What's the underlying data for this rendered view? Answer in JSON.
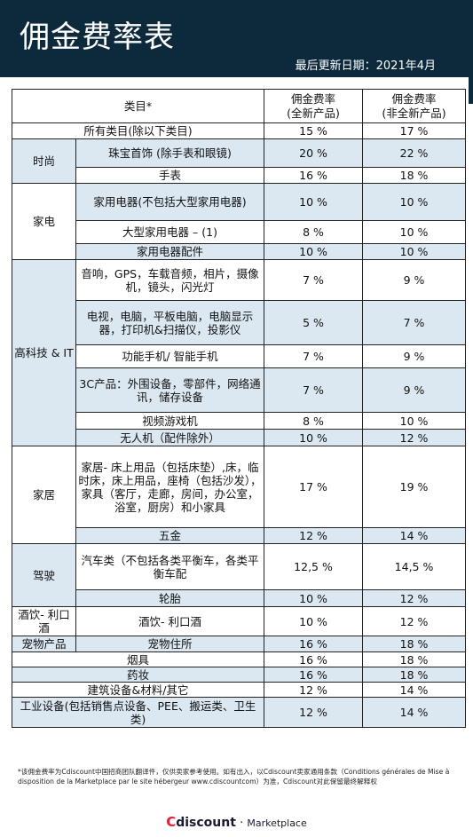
{
  "header": {
    "title": "佣金费率表",
    "updated": "最后更新日期：2021年4月"
  },
  "table": {
    "col_category": "类目*",
    "col_new": "佣金费率\n(全新产品)",
    "col_used": "佣金费率\n(非全新产品)",
    "rows": [
      {
        "group": "",
        "item": "所有类目(除以下类目)",
        "new": "15 %",
        "used": "17 %"
      },
      {
        "group": "时尚",
        "item": "珠宝首饰 (除手表和眼镜)",
        "new": "20 %",
        "used": "22 %"
      },
      {
        "group": "时尚",
        "item": "手表",
        "new": "16 %",
        "used": "18 %"
      },
      {
        "group": "家电",
        "item": "家用电器(不包括大型家用电器)",
        "new": "10 %",
        "used": "10 %"
      },
      {
        "group": "家电",
        "item": "大型家用电器 – (1)",
        "new": "8 %",
        "used": "10 %"
      },
      {
        "group": "家电",
        "item": "家用电器配件",
        "new": "10 %",
        "used": "10 %"
      },
      {
        "group": "高科技 & IT",
        "item": "音响，GPS，车载音频，相片，摄像机，镜头，闪光灯",
        "new": "7 %",
        "used": "9 %"
      },
      {
        "group": "高科技 & IT",
        "item": "电视，电脑，平板电脑，电脑显示器，打印机&扫描仪，投影仪",
        "new": "5 %",
        "used": "7 %"
      },
      {
        "group": "高科技 & IT",
        "item": "功能手机/ 智能手机",
        "new": "7 %",
        "used": "9 %"
      },
      {
        "group": "高科技 & IT",
        "item": "3C产品：外围设备，零部件，网络通讯，储存设备",
        "new": "7 %",
        "used": "9 %"
      },
      {
        "group": "高科技 & IT",
        "item": "视频游戏机",
        "new": "8 %",
        "used": "10 %"
      },
      {
        "group": "高科技 & IT",
        "item": "无人机（配件除外）",
        "new": "10 %",
        "used": "12 %"
      },
      {
        "group": "家居",
        "item": "家居- 床上用品（包括床垫）,床，临时床，床上用品，座椅（包括沙发），家具（客厅，走廊，房间，办公室，浴室，厨房）和小家具",
        "new": "17 %",
        "used": "19 %"
      },
      {
        "group": "家居",
        "item": "五金",
        "new": "12 %",
        "used": "14 %"
      },
      {
        "group": "驾驶",
        "item": "汽车类（不包括各类平衡车，各类平衡车配",
        "new": "12,5 %",
        "used": "14,5 %"
      },
      {
        "group": "驾驶",
        "item": "轮胎",
        "new": "10 %",
        "used": "12 %"
      },
      {
        "group": "酒饮- 利口酒",
        "item": "酒饮- 利口酒",
        "new": "10 %",
        "used": "12 %"
      },
      {
        "group": "宠物产品",
        "item": "宠物住所",
        "new": "16 %",
        "used": "18 %"
      },
      {
        "group": "",
        "item": "烟具",
        "new": "16 %",
        "used": "18 %"
      },
      {
        "group": "",
        "item": "药妆",
        "new": "16 %",
        "used": "18 %"
      },
      {
        "group": "",
        "item": "建筑设备&材料/其它",
        "new": "12 %",
        "used": "14 %"
      },
      {
        "group": "",
        "item": "工业设备(包括销售点设备、PEE、搬运类、卫生类)",
        "new": "12 %",
        "used": "14 %"
      }
    ]
  },
  "footnote": "*该佣金费率为Cdiscount中国招商团队翻译件，仅供卖家参考使用。如有出入，以Cdiscount卖家通用条款（Conditions générales de Mise à disposition de la Marketplace par le site hébergeur www.cdiscountcom）为准，Cdiscount对此保留最终解释权",
  "brand": {
    "c": "C",
    "name": "discount",
    "separator": " · ",
    "marketplace": "Marketplace"
  }
}
